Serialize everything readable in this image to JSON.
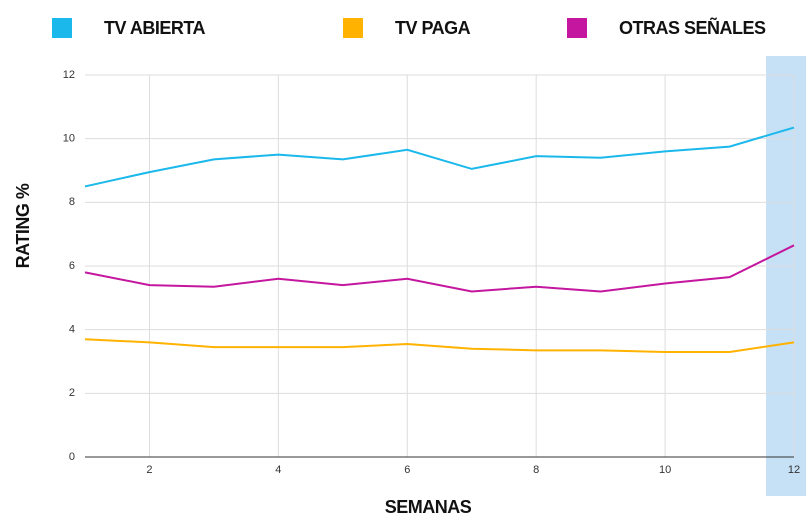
{
  "chart_data": {
    "type": "line",
    "x": [
      1,
      2,
      3,
      4,
      5,
      6,
      7,
      8,
      9,
      10,
      11,
      12
    ],
    "series": [
      {
        "name": "TV ABIERTA",
        "color": "#1bb8ec",
        "values": [
          8.5,
          8.95,
          9.35,
          9.5,
          9.35,
          9.65,
          9.05,
          9.45,
          9.4,
          9.6,
          9.75,
          10.35
        ]
      },
      {
        "name": "TV PAGA",
        "color": "#ffb300",
        "values": [
          3.7,
          3.6,
          3.45,
          3.45,
          3.45,
          3.55,
          3.4,
          3.35,
          3.35,
          3.3,
          3.3,
          3.6
        ]
      },
      {
        "name": "OTRAS SEÑALES",
        "color": "#c4169e",
        "values": [
          5.8,
          5.4,
          5.35,
          5.6,
          5.4,
          5.6,
          5.2,
          5.35,
          5.2,
          5.45,
          5.65,
          6.65
        ]
      }
    ],
    "xlabel": "SEMANAS",
    "ylabel": "RATING %",
    "xlim": [
      1,
      12
    ],
    "xticks": [
      2,
      4,
      6,
      8,
      10,
      12
    ],
    "ylim": [
      0,
      12
    ],
    "yticks": [
      0,
      2,
      4,
      6,
      8,
      10,
      12
    ],
    "grid": true
  }
}
